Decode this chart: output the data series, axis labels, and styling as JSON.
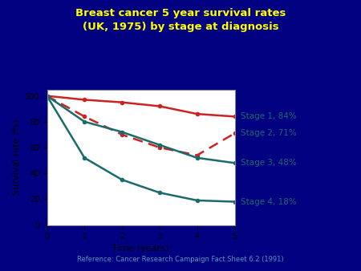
{
  "title": "Breast cancer 5 year survival rates\n(UK, 1975) by stage at diagnosis",
  "title_color": "#FFFF00",
  "background_color": "#000080",
  "plot_bg_color": "#FFFFFF",
  "xlabel": "Time (years)",
  "ylabel": "Survival rate (%)",
  "reference": "Reference: Cancer Research Campaign Fact Sheet 6.2 (1991)",
  "xlim": [
    0,
    5
  ],
  "ylim": [
    0,
    105
  ],
  "xticks": [
    0,
    1,
    2,
    3,
    4,
    5
  ],
  "yticks": [
    0,
    20,
    40,
    60,
    80,
    100
  ],
  "stage1_x": [
    0,
    1,
    2,
    3,
    4,
    5
  ],
  "stage1_y": [
    100,
    97,
    95,
    92,
    86,
    84
  ],
  "stage1_color": "#cc2222",
  "stage1_linestyle": "-",
  "stage1_label": "Stage 1, 84%",
  "stage2_x": [
    0,
    1,
    2,
    3,
    4,
    5
  ],
  "stage2_y": [
    100,
    84,
    70,
    60,
    54,
    71
  ],
  "stage2_color": "#cc2222",
  "stage2_linestyle": "--",
  "stage2_label": "Stage 2, 71%",
  "stage3_x": [
    0,
    1,
    2,
    3,
    4,
    5
  ],
  "stage3_y": [
    100,
    80,
    72,
    62,
    52,
    48
  ],
  "stage3_color": "#1a6b6b",
  "stage3_linestyle": "-",
  "stage3_label": "Stage 3, 48%",
  "stage4_x": [
    0,
    1,
    2,
    3,
    4,
    5
  ],
  "stage4_y": [
    100,
    52,
    35,
    25,
    19,
    18
  ],
  "stage4_color": "#1a6b6b",
  "stage4_linestyle": "-",
  "stage4_label": "Stage 4, 18%",
  "label_color": "#1a6b6b",
  "label_fontsize": 7.5,
  "linewidth": 1.8,
  "markersize": 4
}
